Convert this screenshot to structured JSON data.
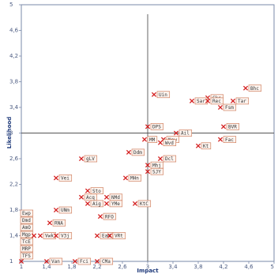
{
  "chart_data": {
    "type": "scatter",
    "title": "",
    "xlabel": "Impact",
    "ylabel": "Likelihood",
    "xlim": [
      1,
      5
    ],
    "ylim": [
      1,
      5
    ],
    "xticks": [
      "1",
      "1,4",
      "1,8",
      "2,2",
      "2,6",
      "3",
      "3,4",
      "3,8",
      "4,2",
      "4,6",
      "5"
    ],
    "yticks": [
      "1",
      "1,4",
      "1,8",
      "2,2",
      "2,6",
      "3",
      "3,4",
      "3,8",
      "4,2",
      "4,6",
      "5"
    ],
    "quadrant_lines": {
      "x": 3,
      "y": 3
    },
    "grid": false,
    "marker": "x",
    "colors": {
      "marker": "#d42020",
      "label_border": "#d08060",
      "label_fill": "#fdf5f0",
      "quadrant": "#555555",
      "frame": "#7a8aaa"
    },
    "points": [
      {
        "x": 4.55,
        "y": 3.7,
        "label": "Bhc"
      },
      {
        "x": 3.95,
        "y": 3.55,
        "label": "Ckc"
      },
      {
        "x": 3.7,
        "y": 3.5,
        "label": "Sar"
      },
      {
        "x": 3.95,
        "y": 3.5,
        "label": "Rec"
      },
      {
        "x": 4.35,
        "y": 3.5,
        "label": "Tar"
      },
      {
        "x": 3.1,
        "y": 3.6,
        "label": "Uin"
      },
      {
        "x": 4.15,
        "y": 3.4,
        "label": "Fsm"
      },
      {
        "x": 3.0,
        "y": 3.1,
        "label": "DPS"
      },
      {
        "x": 4.2,
        "y": 3.1,
        "label": "BVR"
      },
      {
        "x": 3.45,
        "y": 3.0,
        "label": "Ail"
      },
      {
        "x": 3.25,
        "y": 2.9,
        "label": "New"
      },
      {
        "x": 2.95,
        "y": 2.9,
        "label": "MM"
      },
      {
        "x": 3.2,
        "y": 2.85,
        "label": "Wvd"
      },
      {
        "x": 4.15,
        "y": 2.9,
        "label": "Fac"
      },
      {
        "x": 3.8,
        "y": 2.8,
        "label": "Kt"
      },
      {
        "x": 2.7,
        "y": 2.7,
        "label": "Ddm"
      },
      {
        "x": 3.2,
        "y": 2.6,
        "label": "Dcl"
      },
      {
        "x": 3.0,
        "y": 2.5,
        "label": "Mhj"
      },
      {
        "x": 3.0,
        "y": 2.4,
        "label": "SJY"
      },
      {
        "x": 1.95,
        "y": 2.6,
        "label": "gLV"
      },
      {
        "x": 1.55,
        "y": 2.3,
        "label": "Vei"
      },
      {
        "x": 2.65,
        "y": 2.3,
        "label": "MHn"
      },
      {
        "x": 2.05,
        "y": 2.1,
        "label": "Sto"
      },
      {
        "x": 1.95,
        "y": 2.0,
        "label": "Acq"
      },
      {
        "x": 2.35,
        "y": 2.0,
        "label": "NMd"
      },
      {
        "x": 2.35,
        "y": 1.9,
        "label": "YMe"
      },
      {
        "x": 2.8,
        "y": 1.9,
        "label": "KtC"
      },
      {
        "x": 2.05,
        "y": 1.9,
        "label": "Aig"
      },
      {
        "x": 1.55,
        "y": 1.8,
        "label": "UNm"
      },
      {
        "x": 2.25,
        "y": 1.7,
        "label": "RFO"
      },
      {
        "x": 1.45,
        "y": 1.6,
        "label": "RNA"
      },
      {
        "x": 1.3,
        "y": 1.4,
        "label": "Vwk"
      },
      {
        "x": 1.2,
        "y": 1.4,
        "label": "TcE"
      },
      {
        "x": 1.55,
        "y": 1.4,
        "label": "V3j"
      },
      {
        "x": 2.2,
        "y": 1.4,
        "label": "EaN"
      },
      {
        "x": 2.4,
        "y": 1.4,
        "label": "VRt"
      },
      {
        "x": 1.0,
        "y": 1.0,
        "label": "Ewp"
      },
      {
        "x": 1.4,
        "y": 1.0,
        "label": "Van"
      },
      {
        "x": 1.85,
        "y": 1.0,
        "label": "Fci"
      },
      {
        "x": 2.2,
        "y": 1.0,
        "label": "CMa"
      }
    ],
    "left_stack_labels": [
      "Ewp",
      "Dmd",
      "AmO",
      "Mgp",
      "TcE",
      "MRP",
      "TFS"
    ]
  }
}
